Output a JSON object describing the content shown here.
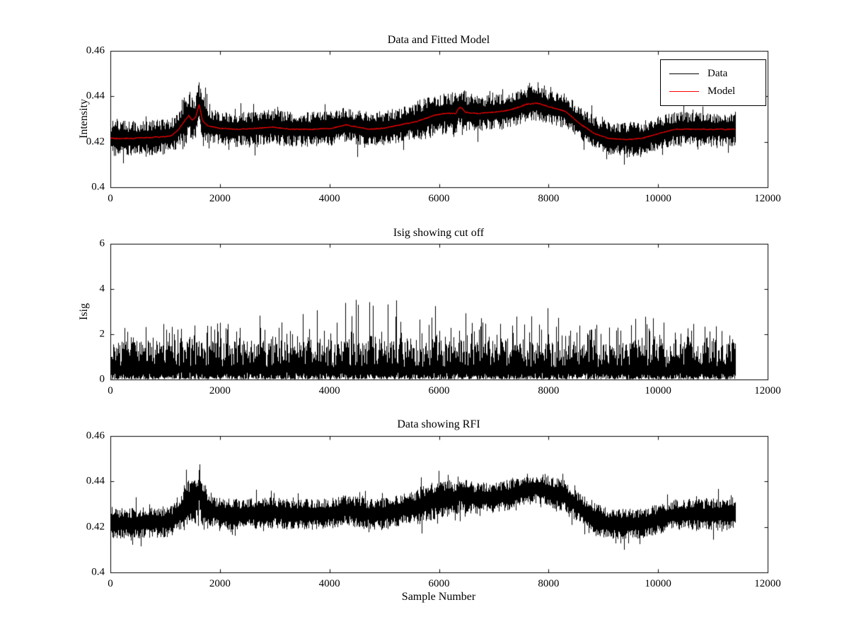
{
  "figure": {
    "background": "#ffffff",
    "text_color": "#000000"
  },
  "chart_data": [
    {
      "type": "line",
      "title": "Data and Fitted Model",
      "xlabel": "",
      "ylabel": "Intensity",
      "xlim": [
        0,
        12000
      ],
      "ylim": [
        0.4,
        0.46
      ],
      "xticks": [
        "0",
        "2000",
        "4000",
        "6000",
        "8000",
        "10000",
        "12000"
      ],
      "xtick_values": [
        0,
        2000,
        4000,
        6000,
        8000,
        10000,
        12000
      ],
      "yticks": [
        "0.4",
        "0.42",
        "0.44",
        "0.46"
      ],
      "ytick_values": [
        0.4,
        0.42,
        0.44,
        0.46
      ],
      "grid": false,
      "legend": {
        "position": "top-right",
        "entries": [
          {
            "label": "Data",
            "color": "#000000"
          },
          {
            "label": "Model",
            "color": "#ff0000"
          }
        ]
      },
      "series": [
        {
          "name": "Data",
          "color": "#000000",
          "style": "noisy-band",
          "x_start": 0,
          "x_end": 11400,
          "noise_amplitude": 0.0062,
          "noise_boost": [
            {
              "x0": 1300,
              "x1": 1780,
              "factor": 1.45
            },
            {
              "x0": 5600,
              "x1": 6500,
              "factor": 1.2
            }
          ],
          "baseline_x": [
            0,
            400,
            800,
            1100,
            1250,
            1350,
            1430,
            1500,
            1560,
            1620,
            1680,
            1780,
            2000,
            2300,
            2700,
            2950,
            3300,
            3700,
            4050,
            4300,
            4500,
            4750,
            5000,
            5300,
            5600,
            5900,
            6100,
            6300,
            6390,
            6480,
            6700,
            7000,
            7300,
            7600,
            7800,
            8000,
            8300,
            8600,
            8850,
            9100,
            9400,
            9700,
            10000,
            10300,
            10700,
            11000,
            11400
          ],
          "baseline_y": [
            0.4215,
            0.4215,
            0.422,
            0.4225,
            0.4255,
            0.429,
            0.4315,
            0.4295,
            0.431,
            0.4365,
            0.4295,
            0.427,
            0.426,
            0.4255,
            0.426,
            0.4265,
            0.4255,
            0.4255,
            0.426,
            0.4275,
            0.4265,
            0.4255,
            0.426,
            0.4275,
            0.429,
            0.4315,
            0.4325,
            0.4325,
            0.4355,
            0.433,
            0.4325,
            0.433,
            0.434,
            0.4365,
            0.437,
            0.4355,
            0.4335,
            0.4275,
            0.4235,
            0.4215,
            0.421,
            0.4215,
            0.4235,
            0.4255,
            0.4255,
            0.4255,
            0.4255
          ]
        },
        {
          "name": "Model",
          "color": "#ff0000",
          "style": "line",
          "x": [
            0,
            400,
            800,
            1100,
            1250,
            1350,
            1430,
            1500,
            1560,
            1620,
            1680,
            1780,
            2000,
            2300,
            2700,
            2950,
            3300,
            3700,
            4050,
            4300,
            4500,
            4750,
            5000,
            5300,
            5600,
            5900,
            6100,
            6300,
            6390,
            6480,
            6700,
            7000,
            7300,
            7600,
            7800,
            8000,
            8300,
            8600,
            8850,
            9100,
            9400,
            9700,
            10000,
            10300,
            10700,
            11000,
            11400
          ],
          "y": [
            0.4215,
            0.4215,
            0.422,
            0.4225,
            0.4255,
            0.429,
            0.4315,
            0.4295,
            0.431,
            0.4365,
            0.4295,
            0.427,
            0.426,
            0.4255,
            0.426,
            0.4265,
            0.4255,
            0.4255,
            0.426,
            0.4275,
            0.4265,
            0.4255,
            0.426,
            0.4275,
            0.429,
            0.4315,
            0.4325,
            0.4325,
            0.4355,
            0.433,
            0.4325,
            0.433,
            0.434,
            0.4365,
            0.437,
            0.4355,
            0.4335,
            0.4275,
            0.4235,
            0.4215,
            0.421,
            0.4215,
            0.4235,
            0.4255,
            0.4255,
            0.4255,
            0.4255
          ]
        }
      ]
    },
    {
      "type": "line",
      "title": "Isig showing cut off",
      "xlabel": "",
      "ylabel": "Isig",
      "xlim": [
        0,
        12000
      ],
      "ylim": [
        0,
        6
      ],
      "xticks": [
        "0",
        "2000",
        "4000",
        "6000",
        "8000",
        "10000",
        "12000"
      ],
      "xtick_values": [
        0,
        2000,
        4000,
        6000,
        8000,
        10000,
        12000
      ],
      "yticks": [
        "0",
        "2",
        "4",
        "6"
      ],
      "ytick_values": [
        0,
        2,
        4,
        6
      ],
      "grid": false,
      "series": [
        {
          "name": "Isig",
          "color": "#000000",
          "style": "spikes",
          "x_start": 0,
          "x_end": 11400,
          "floor": 0,
          "dense_band_top": 1.8,
          "envelope_x": [
            0,
            500,
            1000,
            1500,
            2000,
            2500,
            3000,
            3500,
            4000,
            4300,
            4600,
            5000,
            5150,
            5500,
            6000,
            6500,
            7000,
            7500,
            8000,
            8500,
            9000,
            9500,
            10000,
            10500,
            11000,
            11400
          ],
          "envelope_y": [
            2.6,
            2.3,
            2.5,
            2.4,
            2.6,
            3.5,
            2.7,
            3.0,
            3.2,
            3.8,
            3.6,
            3.4,
            4.05,
            2.9,
            3.3,
            3.0,
            2.8,
            2.9,
            3.2,
            2.7,
            2.8,
            2.9,
            3.0,
            2.7,
            2.6,
            2.5
          ]
        }
      ]
    },
    {
      "type": "line",
      "title": "Data showing RFI",
      "xlabel": "Sample Number",
      "ylabel": "",
      "xlim": [
        0,
        12000
      ],
      "ylim": [
        0.4,
        0.46
      ],
      "xticks": [
        "0",
        "2000",
        "4000",
        "6000",
        "8000",
        "10000",
        "12000"
      ],
      "xtick_values": [
        0,
        2000,
        4000,
        6000,
        8000,
        10000,
        12000
      ],
      "yticks": [
        "0.4",
        "0.42",
        "0.44",
        "0.46"
      ],
      "ytick_values": [
        0.4,
        0.42,
        0.44,
        0.46
      ],
      "grid": false,
      "series": [
        {
          "name": "Data",
          "color": "#000000",
          "style": "noisy-band",
          "x_start": 0,
          "x_end": 11400,
          "noise_amplitude": 0.0055,
          "noise_boost": [
            {
              "x0": 1300,
              "x1": 1780,
              "factor": 1.5
            },
            {
              "x0": 5600,
              "x1": 6500,
              "factor": 1.2
            }
          ],
          "baseline_x": [
            0,
            400,
            800,
            1100,
            1250,
            1350,
            1430,
            1500,
            1560,
            1620,
            1680,
            1780,
            2000,
            2300,
            2700,
            2950,
            3300,
            3700,
            4050,
            4300,
            4500,
            4750,
            5000,
            5300,
            5600,
            5900,
            6100,
            6300,
            6390,
            6480,
            6700,
            7000,
            7300,
            7600,
            7800,
            8000,
            8300,
            8600,
            8850,
            9100,
            9400,
            9700,
            10000,
            10300,
            10700,
            11000,
            11400
          ],
          "baseline_y": [
            0.4215,
            0.4215,
            0.422,
            0.4225,
            0.4255,
            0.429,
            0.4315,
            0.4295,
            0.431,
            0.4365,
            0.4295,
            0.427,
            0.426,
            0.4255,
            0.426,
            0.4265,
            0.4255,
            0.4255,
            0.426,
            0.4275,
            0.4265,
            0.4255,
            0.426,
            0.4275,
            0.429,
            0.4315,
            0.4325,
            0.4325,
            0.4355,
            0.433,
            0.4325,
            0.433,
            0.434,
            0.4365,
            0.437,
            0.4355,
            0.4335,
            0.4275,
            0.4235,
            0.4215,
            0.421,
            0.4215,
            0.4235,
            0.4255,
            0.4255,
            0.4255,
            0.4255
          ]
        }
      ]
    }
  ]
}
